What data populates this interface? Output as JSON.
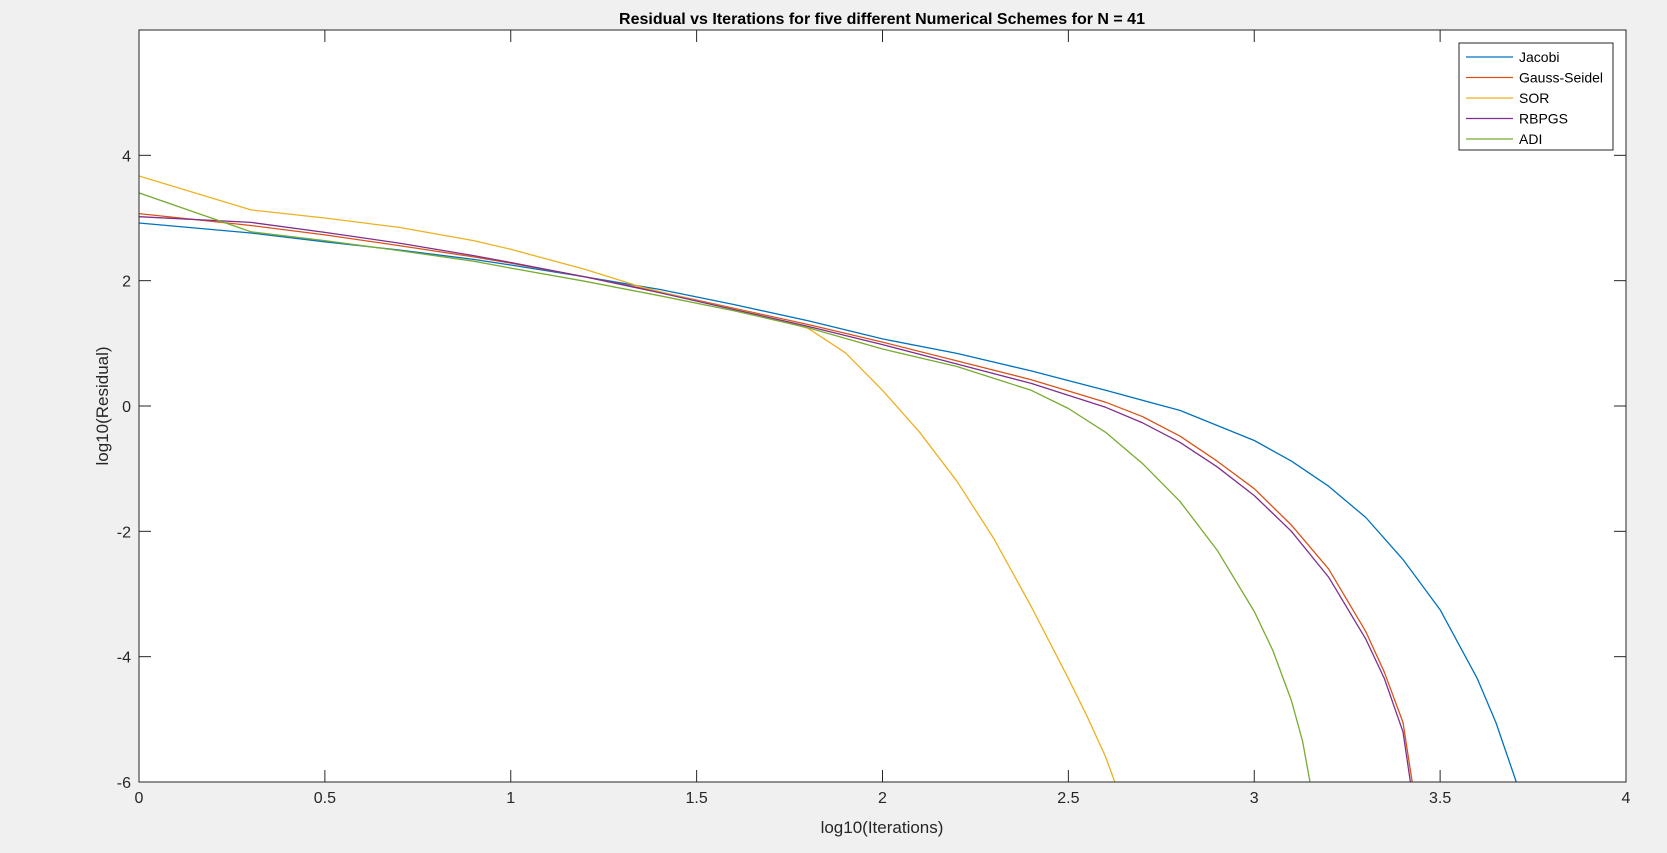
{
  "chart_data": {
    "type": "line",
    "title": "Residual vs Iterations for five different Numerical Schemes for N = 41",
    "xlabel": "log10(Iterations)",
    "ylabel": "log10(Residual)",
    "xlim": [
      0,
      4
    ],
    "ylim": [
      -6,
      6
    ],
    "x_ticks": [
      0,
      0.5,
      1,
      1.5,
      2,
      2.5,
      3,
      3.5,
      4
    ],
    "x_tick_labels": [
      "0",
      "0.5",
      "1",
      "1.5",
      "2",
      "2.5",
      "3",
      "3.5",
      "4"
    ],
    "y_ticks": [
      -6,
      -4,
      -2,
      0,
      2,
      4
    ],
    "y_tick_labels": [
      "-6",
      "-4",
      "-2",
      "0",
      "2",
      "4"
    ],
    "grid": false,
    "legend_position": "top-right",
    "series": [
      {
        "name": "Jacobi",
        "color": "#0072bd",
        "points": [
          [
            0,
            2.92
          ],
          [
            0.301,
            2.76
          ],
          [
            0.5,
            2.62
          ],
          [
            0.7,
            2.49
          ],
          [
            0.9,
            2.34
          ],
          [
            1.0,
            2.25
          ],
          [
            1.2,
            2.06
          ],
          [
            1.4,
            1.86
          ],
          [
            1.6,
            1.62
          ],
          [
            1.8,
            1.36
          ],
          [
            2.0,
            1.07
          ],
          [
            2.2,
            0.84
          ],
          [
            2.4,
            0.56
          ],
          [
            2.6,
            0.25
          ],
          [
            2.8,
            -0.07
          ],
          [
            3.0,
            -0.55
          ],
          [
            3.1,
            -0.88
          ],
          [
            3.2,
            -1.28
          ],
          [
            3.3,
            -1.78
          ],
          [
            3.4,
            -2.45
          ],
          [
            3.5,
            -3.25
          ],
          [
            3.6,
            -4.35
          ],
          [
            3.65,
            -5.05
          ],
          [
            3.705,
            -6.0
          ]
        ]
      },
      {
        "name": "Gauss-Seidel",
        "color": "#d95319",
        "points": [
          [
            0,
            3.07
          ],
          [
            0.301,
            2.88
          ],
          [
            0.5,
            2.73
          ],
          [
            0.7,
            2.56
          ],
          [
            0.9,
            2.38
          ],
          [
            1.0,
            2.28
          ],
          [
            1.2,
            2.06
          ],
          [
            1.4,
            1.82
          ],
          [
            1.6,
            1.56
          ],
          [
            1.8,
            1.3
          ],
          [
            2.0,
            1.02
          ],
          [
            2.2,
            0.72
          ],
          [
            2.4,
            0.42
          ],
          [
            2.6,
            0.06
          ],
          [
            2.7,
            -0.17
          ],
          [
            2.8,
            -0.48
          ],
          [
            2.9,
            -0.88
          ],
          [
            3.0,
            -1.32
          ],
          [
            3.1,
            -1.9
          ],
          [
            3.2,
            -2.6
          ],
          [
            3.3,
            -3.6
          ],
          [
            3.35,
            -4.25
          ],
          [
            3.4,
            -5.05
          ],
          [
            3.425,
            -6.0
          ]
        ]
      },
      {
        "name": "SOR",
        "color": "#edb120",
        "points": [
          [
            0,
            3.67
          ],
          [
            0.301,
            3.13
          ],
          [
            0.5,
            3.0
          ],
          [
            0.7,
            2.85
          ],
          [
            0.9,
            2.64
          ],
          [
            1.0,
            2.5
          ],
          [
            1.2,
            2.18
          ],
          [
            1.35,
            1.9
          ],
          [
            1.5,
            1.68
          ],
          [
            1.65,
            1.48
          ],
          [
            1.8,
            1.24
          ],
          [
            1.9,
            0.85
          ],
          [
            2.0,
            0.25
          ],
          [
            2.1,
            -0.42
          ],
          [
            2.2,
            -1.2
          ],
          [
            2.3,
            -2.12
          ],
          [
            2.4,
            -3.2
          ],
          [
            2.5,
            -4.35
          ],
          [
            2.55,
            -4.95
          ],
          [
            2.6,
            -5.6
          ],
          [
            2.625,
            -6.0
          ]
        ]
      },
      {
        "name": "RBPGS",
        "color": "#7e2f8e",
        "points": [
          [
            0,
            3.02
          ],
          [
            0.301,
            2.93
          ],
          [
            0.5,
            2.77
          ],
          [
            0.7,
            2.6
          ],
          [
            0.9,
            2.4
          ],
          [
            1.0,
            2.29
          ],
          [
            1.2,
            2.06
          ],
          [
            1.4,
            1.81
          ],
          [
            1.6,
            1.54
          ],
          [
            1.8,
            1.27
          ],
          [
            2.0,
            0.98
          ],
          [
            2.2,
            0.67
          ],
          [
            2.4,
            0.36
          ],
          [
            2.6,
            -0.02
          ],
          [
            2.7,
            -0.27
          ],
          [
            2.8,
            -0.58
          ],
          [
            2.9,
            -0.97
          ],
          [
            3.0,
            -1.43
          ],
          [
            3.1,
            -2.0
          ],
          [
            3.2,
            -2.73
          ],
          [
            3.3,
            -3.72
          ],
          [
            3.35,
            -4.35
          ],
          [
            3.4,
            -5.2
          ],
          [
            3.42,
            -6.0
          ]
        ]
      },
      {
        "name": "ADI",
        "color": "#77ac30",
        "points": [
          [
            0,
            3.4
          ],
          [
            0.301,
            2.78
          ],
          [
            0.5,
            2.64
          ],
          [
            0.7,
            2.48
          ],
          [
            0.9,
            2.31
          ],
          [
            1.0,
            2.2
          ],
          [
            1.2,
            1.99
          ],
          [
            1.4,
            1.76
          ],
          [
            1.6,
            1.52
          ],
          [
            1.8,
            1.25
          ],
          [
            2.0,
            0.91
          ],
          [
            2.2,
            0.63
          ],
          [
            2.4,
            0.25
          ],
          [
            2.5,
            -0.04
          ],
          [
            2.6,
            -0.42
          ],
          [
            2.7,
            -0.92
          ],
          [
            2.8,
            -1.52
          ],
          [
            2.9,
            -2.3
          ],
          [
            3.0,
            -3.28
          ],
          [
            3.05,
            -3.9
          ],
          [
            3.1,
            -4.7
          ],
          [
            3.13,
            -5.35
          ],
          [
            3.15,
            -6.0
          ]
        ]
      }
    ]
  }
}
